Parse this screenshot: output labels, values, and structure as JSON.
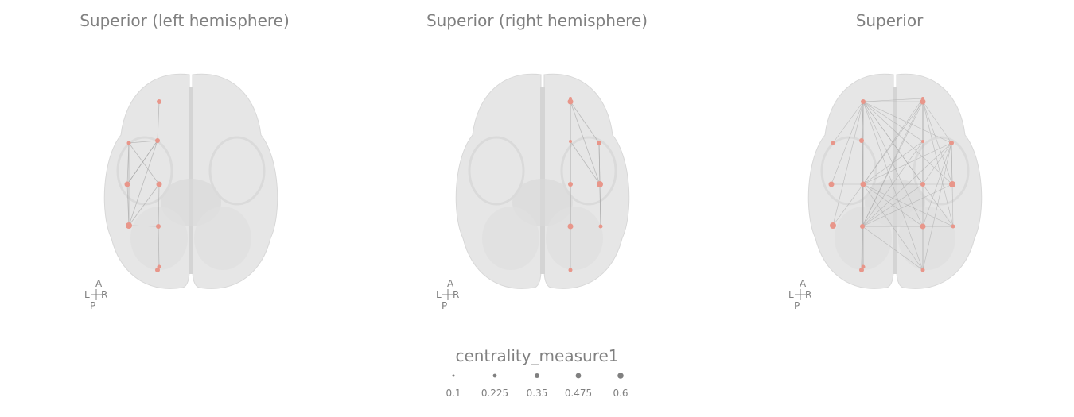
{
  "panels": [
    {
      "title": "Superior (left hemisphere)"
    },
    {
      "title": "Superior (right hemisphere)"
    },
    {
      "title": "Superior"
    }
  ],
  "orientation": {
    "anterior": "A",
    "posterior": "P",
    "left": "L",
    "right": "R"
  },
  "legend": {
    "title": "centrality_measure1",
    "values": [
      "0.1",
      "0.225",
      "0.35",
      "0.475",
      "0.6"
    ]
  },
  "colors": {
    "node": "#e8968a",
    "edge": "#a8a8a8",
    "brain": "#e6e6e6",
    "text": "#808080"
  }
}
